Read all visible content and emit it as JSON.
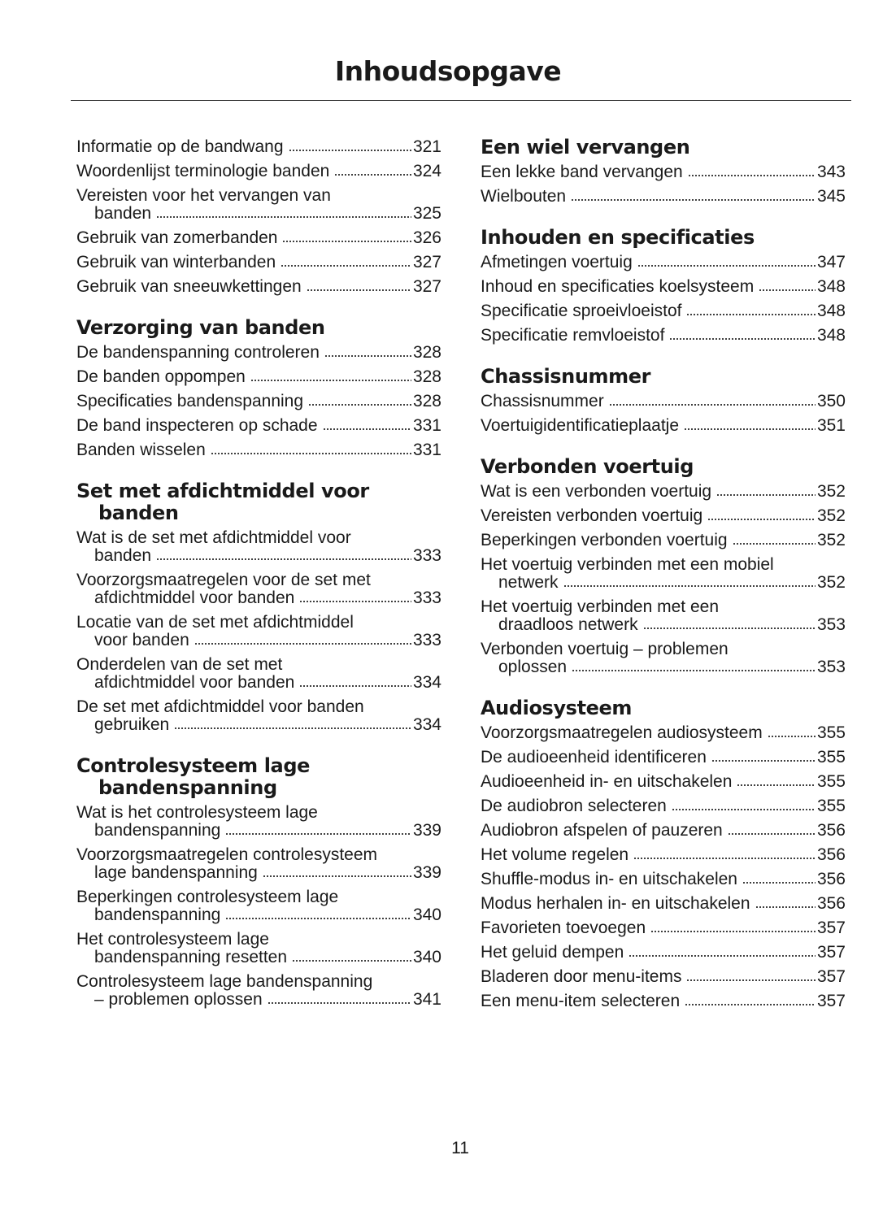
{
  "header": {
    "title": "Inhoudsopgave"
  },
  "columns": [
    {
      "sections": [
        {
          "entries": [
            {
              "lines": [
                "Informatie op de bandwang"
              ],
              "page": "321"
            },
            {
              "lines": [
                "Woordenlijst terminologie banden"
              ],
              "page": "324"
            },
            {
              "lines": [
                "Vereisten voor het vervangen van",
                "banden"
              ],
              "page": "325"
            },
            {
              "lines": [
                "Gebruik van zomerbanden"
              ],
              "page": "326"
            },
            {
              "lines": [
                "Gebruik van winterbanden"
              ],
              "page": "327"
            },
            {
              "lines": [
                "Gebruik van sneeuwkettingen"
              ],
              "page": "327"
            }
          ]
        },
        {
          "heading": [
            "Verzorging van banden"
          ],
          "entries": [
            {
              "lines": [
                "De bandenspanning controleren"
              ],
              "page": "328"
            },
            {
              "lines": [
                "De banden oppompen"
              ],
              "page": "328"
            },
            {
              "lines": [
                "Specificaties bandenspanning"
              ],
              "page": "328"
            },
            {
              "lines": [
                "De band inspecteren op schade"
              ],
              "page": "331"
            },
            {
              "lines": [
                "Banden wisselen"
              ],
              "page": "331"
            }
          ]
        },
        {
          "heading": [
            "Set met afdichtmiddel voor",
            "banden"
          ],
          "entries": [
            {
              "lines": [
                "Wat is de set met afdichtmiddel voor",
                "banden"
              ],
              "page": "333"
            },
            {
              "lines": [
                "Voorzorgsmaatregelen voor de set met",
                "afdichtmiddel voor banden"
              ],
              "page": "333"
            },
            {
              "lines": [
                "Locatie van de set met afdichtmiddel",
                "voor banden"
              ],
              "page": "333"
            },
            {
              "lines": [
                "Onderdelen van de set met",
                "afdichtmiddel voor banden"
              ],
              "page": "334"
            },
            {
              "lines": [
                "De set met afdichtmiddel voor banden",
                "gebruiken"
              ],
              "page": "334"
            }
          ]
        },
        {
          "heading": [
            "Controlesysteem lage",
            "bandenspanning"
          ],
          "entries": [
            {
              "lines": [
                "Wat is het controlesysteem lage",
                "bandenspanning"
              ],
              "page": "339"
            },
            {
              "lines": [
                "Voorzorgsmaatregelen controlesysteem",
                "lage bandenspanning"
              ],
              "page": "339"
            },
            {
              "lines": [
                "Beperkingen controlesysteem lage",
                "bandenspanning"
              ],
              "page": "340"
            },
            {
              "lines": [
                "Het controlesysteem lage",
                "bandenspanning resetten"
              ],
              "page": "340"
            },
            {
              "lines": [
                "Controlesysteem lage bandenspanning",
                "– problemen oplossen"
              ],
              "page": "341"
            }
          ]
        }
      ]
    },
    {
      "sections": [
        {
          "heading": [
            "Een wiel vervangen"
          ],
          "entries": [
            {
              "lines": [
                "Een lekke band vervangen"
              ],
              "page": "343"
            },
            {
              "lines": [
                "Wielbouten"
              ],
              "page": "345"
            }
          ]
        },
        {
          "heading": [
            "Inhouden en specificaties"
          ],
          "entries": [
            {
              "lines": [
                "Afmetingen voertuig"
              ],
              "page": "347"
            },
            {
              "lines": [
                "Inhoud en specificaties koelsysteem"
              ],
              "page": "348"
            },
            {
              "lines": [
                "Specificatie sproeivloeistof"
              ],
              "page": "348"
            },
            {
              "lines": [
                "Specificatie remvloeistof"
              ],
              "page": "348"
            }
          ]
        },
        {
          "heading": [
            "Chassisnummer"
          ],
          "entries": [
            {
              "lines": [
                "Chassisnummer"
              ],
              "page": "350"
            },
            {
              "lines": [
                "Voertuigidentificatieplaatje"
              ],
              "page": "351"
            }
          ]
        },
        {
          "heading": [
            "Verbonden voertuig"
          ],
          "entries": [
            {
              "lines": [
                "Wat is een verbonden voertuig"
              ],
              "page": "352"
            },
            {
              "lines": [
                "Vereisten verbonden voertuig"
              ],
              "page": "352"
            },
            {
              "lines": [
                "Beperkingen verbonden voertuig"
              ],
              "page": "352"
            },
            {
              "lines": [
                "Het voertuig verbinden met een mobiel",
                "netwerk"
              ],
              "page": "352"
            },
            {
              "lines": [
                "Het voertuig verbinden met een",
                "draadloos netwerk"
              ],
              "page": "353"
            },
            {
              "lines": [
                "Verbonden voertuig – problemen",
                "oplossen"
              ],
              "page": "353"
            }
          ]
        },
        {
          "heading": [
            "Audiosysteem"
          ],
          "entries": [
            {
              "lines": [
                "Voorzorgsmaatregelen audiosysteem"
              ],
              "page": "355"
            },
            {
              "lines": [
                "De audioeenheid identificeren"
              ],
              "page": "355"
            },
            {
              "lines": [
                "Audioeenheid in- en uitschakelen"
              ],
              "page": "355"
            },
            {
              "lines": [
                "De audiobron selecteren"
              ],
              "page": "355"
            },
            {
              "lines": [
                "Audiobron afspelen of pauzeren"
              ],
              "page": "356"
            },
            {
              "lines": [
                "Het volume regelen"
              ],
              "page": "356"
            },
            {
              "lines": [
                "Shuffle-modus in- en uitschakelen"
              ],
              "page": "356"
            },
            {
              "lines": [
                "Modus herhalen in- en uitschakelen"
              ],
              "page": "356"
            },
            {
              "lines": [
                "Favorieten toevoegen"
              ],
              "page": "357"
            },
            {
              "lines": [
                "Het geluid dempen"
              ],
              "page": "357"
            },
            {
              "lines": [
                "Bladeren door menu-items"
              ],
              "page": "357"
            },
            {
              "lines": [
                "Een menu-item selecteren"
              ],
              "page": "357"
            }
          ]
        }
      ]
    }
  ],
  "page_number": "11"
}
